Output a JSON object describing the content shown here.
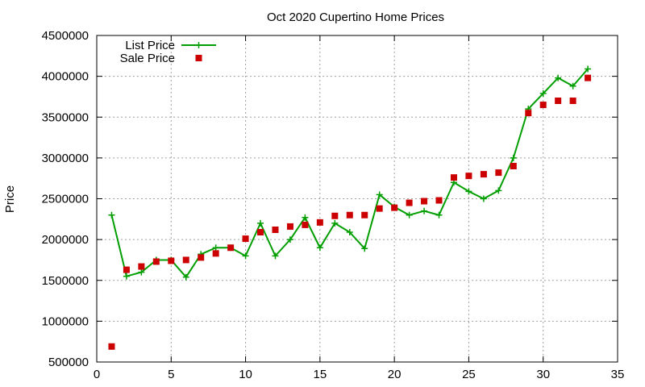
{
  "chart_data": {
    "type": "line",
    "title": "Oct 2020 Cupertino Home Prices",
    "xlabel": "",
    "ylabel": "Price",
    "xlim": [
      0,
      35
    ],
    "ylim": [
      500000,
      4500000
    ],
    "x_ticks": [
      0,
      5,
      10,
      15,
      20,
      25,
      30,
      35
    ],
    "y_ticks": [
      500000,
      1000000,
      1500000,
      2000000,
      2500000,
      3000000,
      3500000,
      4000000,
      4500000
    ],
    "grid": true,
    "legend_position": "top-left",
    "series": [
      {
        "name": "List Price",
        "style": "linespoints",
        "marker": "plus",
        "color": "#009e00",
        "x": [
          1,
          2,
          3,
          4,
          5,
          6,
          7,
          8,
          9,
          10,
          11,
          12,
          13,
          14,
          15,
          16,
          17,
          18,
          19,
          20,
          21,
          22,
          23,
          24,
          25,
          26,
          27,
          28,
          29,
          30,
          31,
          32,
          33
        ],
        "values": [
          2300000,
          1550000,
          1600000,
          1750000,
          1750000,
          1540000,
          1820000,
          1900000,
          1900000,
          1800000,
          2200000,
          1800000,
          2000000,
          2270000,
          1900000,
          2200000,
          2090000,
          1890000,
          2550000,
          2400000,
          2300000,
          2350000,
          2300000,
          2700000,
          2590000,
          2500000,
          2600000,
          3000000,
          3600000,
          3790000,
          3980000,
          3880000,
          4090000
        ]
      },
      {
        "name": "Sale Price",
        "style": "points",
        "marker": "square",
        "color": "#cc0000",
        "x": [
          1,
          2,
          3,
          4,
          5,
          6,
          7,
          8,
          9,
          10,
          11,
          12,
          13,
          14,
          15,
          16,
          17,
          18,
          19,
          20,
          21,
          22,
          23,
          24,
          25,
          26,
          27,
          28,
          29,
          30,
          31,
          32,
          33
        ],
        "values": [
          690000,
          1630000,
          1670000,
          1730000,
          1740000,
          1750000,
          1780000,
          1830000,
          1900000,
          2010000,
          2090000,
          2120000,
          2160000,
          2180000,
          2210000,
          2290000,
          2300000,
          2300000,
          2380000,
          2390000,
          2450000,
          2470000,
          2480000,
          2760000,
          2780000,
          2800000,
          2820000,
          2900000,
          3550000,
          3650000,
          3700000,
          3700000,
          3980000
        ]
      }
    ]
  }
}
